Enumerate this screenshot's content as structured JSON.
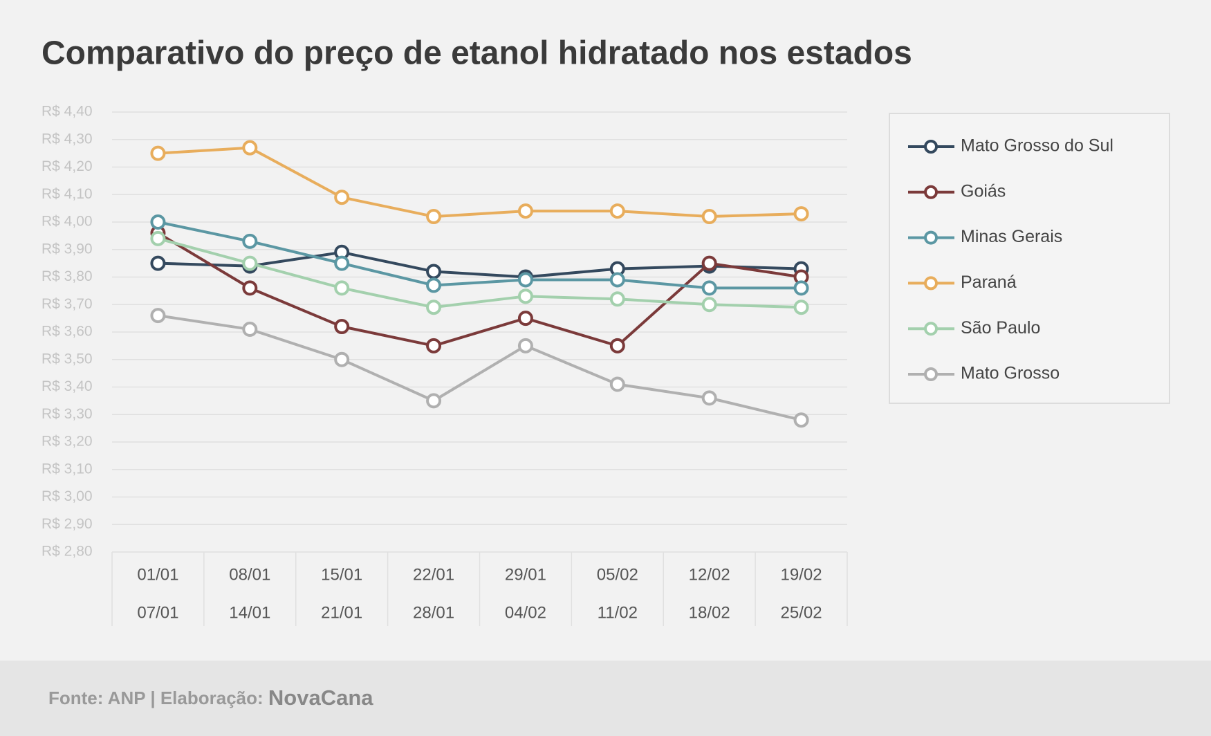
{
  "chart_data": {
    "type": "line",
    "title": "Comparativo do preço de etanol hidratado nos estados",
    "categories": [
      [
        "01/01",
        "07/01"
      ],
      [
        "08/01",
        "14/01"
      ],
      [
        "15/01",
        "21/01"
      ],
      [
        "22/01",
        "28/01"
      ],
      [
        "29/01",
        "04/02"
      ],
      [
        "05/02",
        "11/02"
      ],
      [
        "12/02",
        "18/02"
      ],
      [
        "19/02",
        "25/02"
      ]
    ],
    "series": [
      {
        "name": "Mato Grosso do Sul",
        "color": "#34495e",
        "values": [
          3.85,
          3.84,
          3.89,
          3.82,
          3.8,
          3.83,
          3.84,
          3.83
        ]
      },
      {
        "name": "Goiás",
        "color": "#7b3a3a",
        "values": [
          3.96,
          3.76,
          3.62,
          3.55,
          3.65,
          3.55,
          3.85,
          3.8
        ]
      },
      {
        "name": "Minas Gerais",
        "color": "#5b97a3",
        "values": [
          4.0,
          3.93,
          3.85,
          3.77,
          3.79,
          3.79,
          3.76,
          3.76
        ]
      },
      {
        "name": "Paraná",
        "color": "#e8ad5c",
        "values": [
          4.25,
          4.27,
          4.09,
          4.02,
          4.04,
          4.04,
          4.02,
          4.03
        ]
      },
      {
        "name": "São Paulo",
        "color": "#a3d0ad",
        "values": [
          3.94,
          3.85,
          3.76,
          3.69,
          3.73,
          3.72,
          3.7,
          3.69
        ]
      },
      {
        "name": "Mato Grosso",
        "color": "#b0b0b0",
        "values": [
          3.66,
          3.61,
          3.5,
          3.35,
          3.55,
          3.41,
          3.36,
          3.28
        ]
      }
    ],
    "ylim": [
      2.8,
      4.4
    ],
    "yticks": [
      {
        "value": 2.8,
        "label": "R$ 2,80"
      },
      {
        "value": 2.9,
        "label": "R$ 2,90"
      },
      {
        "value": 3.0,
        "label": "R$ 3,00"
      },
      {
        "value": 3.1,
        "label": "R$ 3,10"
      },
      {
        "value": 3.2,
        "label": "R$ 3,20"
      },
      {
        "value": 3.3,
        "label": "R$ 3,30"
      },
      {
        "value": 3.4,
        "label": "R$ 3,40"
      },
      {
        "value": 3.5,
        "label": "R$ 3,50"
      },
      {
        "value": 3.6,
        "label": "R$ 3,60"
      },
      {
        "value": 3.7,
        "label": "R$ 3,70"
      },
      {
        "value": 3.8,
        "label": "R$ 3,80"
      },
      {
        "value": 3.9,
        "label": "R$ 3,90"
      },
      {
        "value": 4.0,
        "label": "R$ 4,00"
      },
      {
        "value": 4.1,
        "label": "R$ 4,10"
      },
      {
        "value": 4.2,
        "label": "R$ 4,20"
      },
      {
        "value": 4.3,
        "label": "R$ 4,30"
      },
      {
        "value": 4.4,
        "label": "R$ 4,40"
      }
    ],
    "grid": true,
    "legend": "right"
  },
  "footer": {
    "source": "Fonte: ANP | Elaboração:",
    "brand": "NovaCana"
  }
}
